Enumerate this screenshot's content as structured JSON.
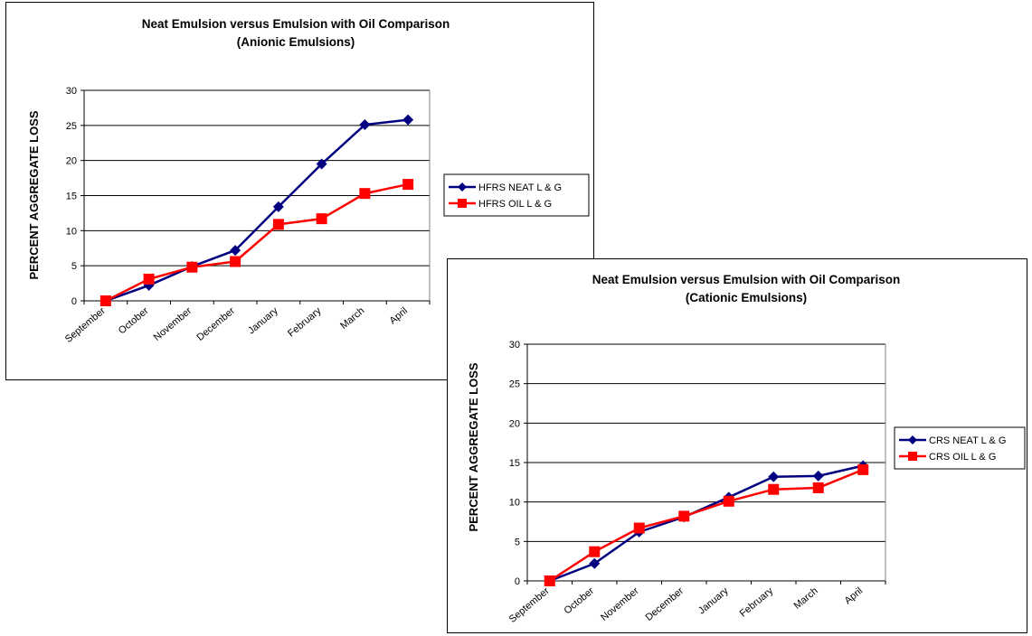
{
  "chart_data": [
    {
      "type": "line",
      "title": "Neat Emulsion versus Emulsion with Oil Comparison",
      "subtitle": "(Anionic Emulsions)",
      "xlabel": "",
      "ylabel": "PERCENT AGGREGATE LOSS",
      "ylim": [
        0,
        30
      ],
      "yticks": [
        0,
        5,
        10,
        15,
        20,
        25,
        30
      ],
      "grid": true,
      "legend_position": "right",
      "categories": [
        "September",
        "October",
        "November",
        "December",
        "January",
        "February",
        "March",
        "April"
      ],
      "series": [
        {
          "name": "HFRS  NEAT L & G",
          "color": "#000080",
          "marker": "diamond",
          "values": [
            0,
            2.2,
            4.9,
            7.2,
            13.4,
            19.5,
            25.1,
            25.8
          ]
        },
        {
          "name": "HFRS OIL L & G",
          "color": "#ff0000",
          "marker": "square",
          "values": [
            0,
            3.1,
            4.8,
            5.6,
            10.9,
            11.7,
            15.3,
            16.6
          ]
        }
      ]
    },
    {
      "type": "line",
      "title": "Neat Emulsion versus Emulsion with Oil Comparison",
      "subtitle": "(Cationic Emulsions)",
      "xlabel": "",
      "ylabel": "PERCENT AGGREGATE LOSS",
      "ylim": [
        0,
        30
      ],
      "yticks": [
        0,
        5,
        10,
        15,
        20,
        25,
        30
      ],
      "grid": true,
      "legend_position": "right",
      "categories": [
        "September",
        "October",
        "November",
        "December",
        "January",
        "February",
        "March",
        "April"
      ],
      "series": [
        {
          "name": "CRS NEAT L & G",
          "color": "#000080",
          "marker": "diamond",
          "values": [
            0,
            2.2,
            6.2,
            8.1,
            10.6,
            13.2,
            13.3,
            14.6
          ]
        },
        {
          "name": "CRS OIL L & G",
          "color": "#ff0000",
          "marker": "square",
          "values": [
            0,
            3.7,
            6.7,
            8.2,
            10.1,
            11.6,
            11.8,
            14.1
          ]
        }
      ]
    }
  ]
}
